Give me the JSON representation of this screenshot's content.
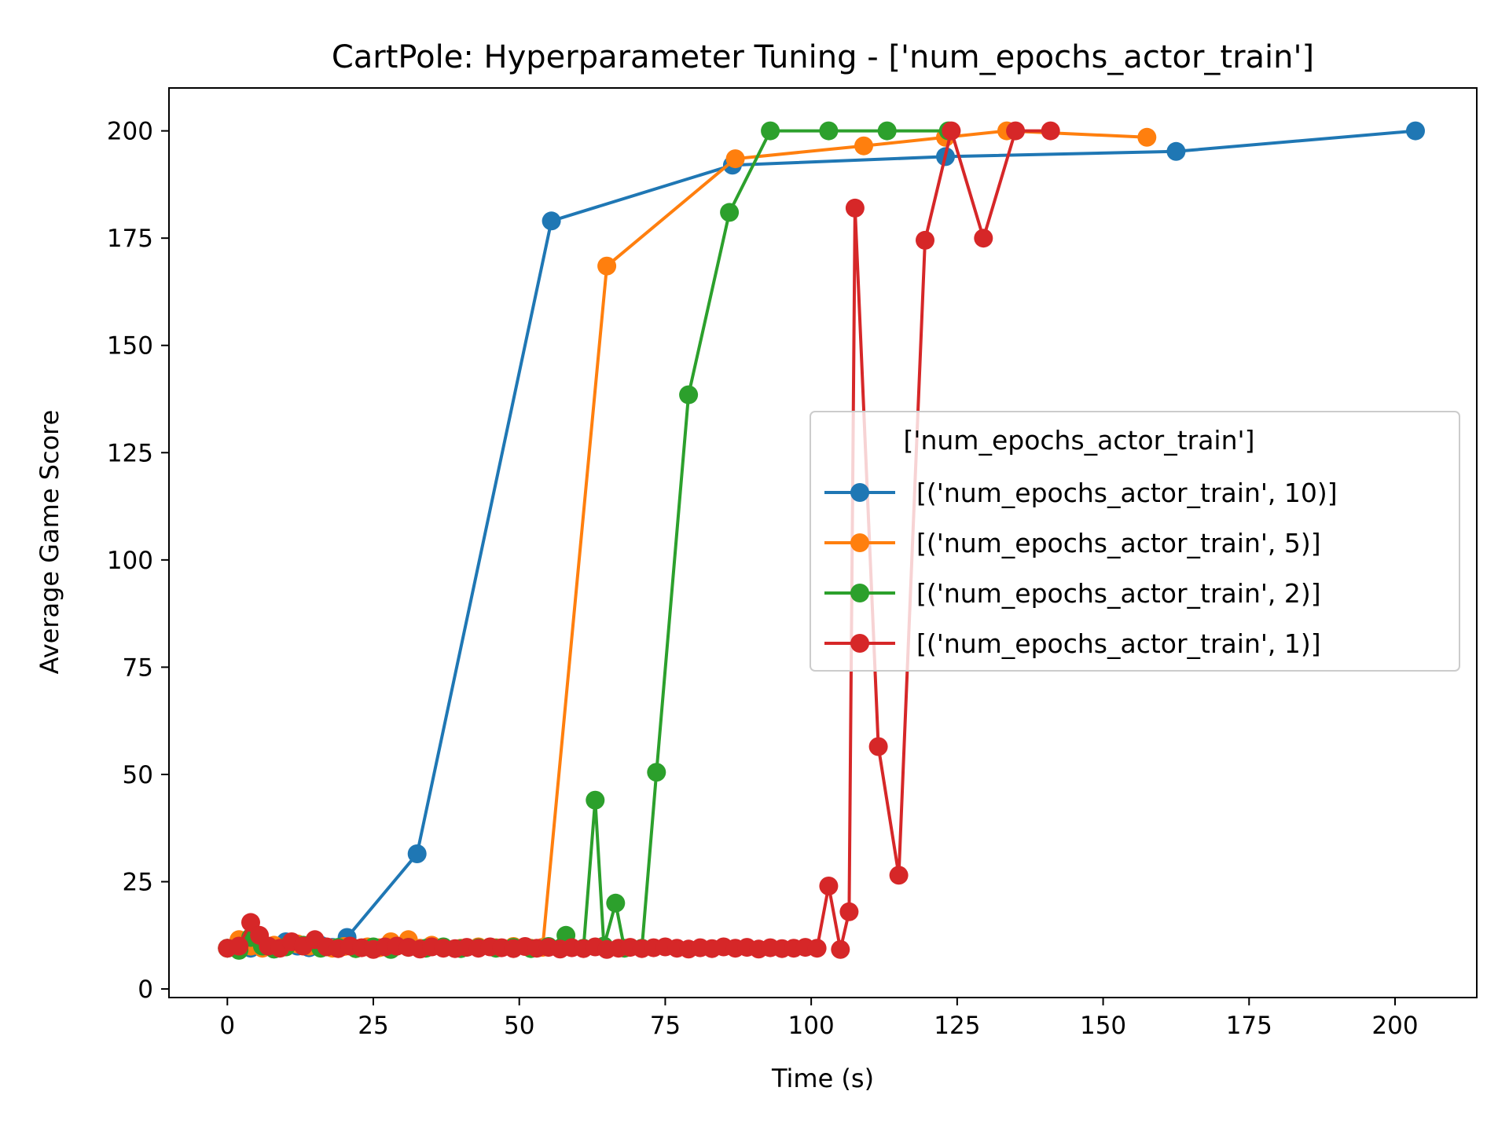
{
  "chart_data": {
    "type": "line",
    "title": "CartPole: Hyperparameter Tuning - ['num_epochs_actor_train']",
    "xlabel": "Time (s)",
    "ylabel": "Average Game Score",
    "xlim": [
      -10,
      214
    ],
    "ylim": [
      -2,
      210
    ],
    "xticks": [
      0,
      25,
      50,
      75,
      100,
      125,
      150,
      175,
      200
    ],
    "yticks": [
      0,
      25,
      50,
      75,
      100,
      125,
      150,
      175,
      200
    ],
    "grid": false,
    "legend": {
      "title": "['num_epochs_actor_train']",
      "placement": "center-right"
    },
    "series": [
      {
        "name": "[('num_epochs_actor_train', 10)]",
        "color": "#1f77b4",
        "x": [
          0,
          2,
          4,
          6,
          8,
          10,
          12,
          14,
          16,
          18,
          20.5,
          32.5,
          55.5,
          86.5,
          123,
          162.5,
          203.5
        ],
        "y": [
          9.5,
          10,
          9.5,
          9.8,
          9.3,
          11,
          10,
          9.6,
          10.2,
          9.7,
          12,
          31.5,
          179,
          192,
          194,
          195.2,
          200
        ]
      },
      {
        "name": "[('num_epochs_actor_train', 5)]",
        "color": "#ff7f0e",
        "x": [
          0,
          2,
          4,
          6,
          8,
          10,
          12,
          14,
          16,
          18,
          20,
          22,
          24,
          26,
          28,
          29,
          31,
          33,
          35,
          37,
          40,
          43,
          46,
          49,
          52,
          54,
          65,
          87,
          109,
          123,
          133.5,
          157.5
        ],
        "y": [
          9.5,
          11.5,
          10,
          9.5,
          10.2,
          9.8,
          10.5,
          10,
          9.7,
          9.5,
          9.9,
          9.4,
          9.8,
          9.6,
          11,
          10,
          11.5,
          9.5,
          10.2,
          9.7,
          9.5,
          9.8,
          9.6,
          9.9,
          9.5,
          9.7,
          168.5,
          193.5,
          196.5,
          198.5,
          200,
          198.5
        ]
      },
      {
        "name": "[('num_epochs_actor_train', 2)]",
        "color": "#2ca02c",
        "x": [
          0,
          2,
          4,
          6,
          8,
          10,
          13,
          16,
          19,
          22,
          25,
          28,
          31,
          34,
          37,
          40,
          43,
          46,
          49,
          52,
          55,
          58,
          61,
          63,
          64.5,
          66.5,
          68,
          71,
          73.5,
          79,
          86,
          93,
          103,
          113,
          123.5
        ],
        "y": [
          9.5,
          9,
          12,
          10,
          9.3,
          9.8,
          10.2,
          9.5,
          9.7,
          9.4,
          9.8,
          9.2,
          9.7,
          9.5,
          9.8,
          9.4,
          9.6,
          9.5,
          9.7,
          9.4,
          9.9,
          12.5,
          9.5,
          44,
          10,
          20,
          9.5,
          9.5,
          50.5,
          138.5,
          181,
          200,
          200,
          200,
          200
        ]
      },
      {
        "name": "[('num_epochs_actor_train', 1)]",
        "color": "#d62728",
        "x": [
          0,
          2,
          4,
          5.5,
          7,
          9,
          11,
          13,
          15,
          17,
          19,
          21,
          23,
          25,
          27,
          29,
          31,
          33,
          35,
          37,
          39,
          41,
          43,
          45,
          47,
          49,
          51,
          53,
          55,
          57,
          59,
          61,
          63,
          65,
          67,
          69,
          71,
          73,
          75,
          77,
          79,
          81,
          83,
          85,
          87,
          89,
          91,
          93,
          95,
          97,
          99,
          101,
          103,
          105,
          106.5,
          107.5,
          111.5,
          115,
          119.5,
          124,
          129.5,
          135,
          141
        ],
        "y": [
          9.5,
          10,
          15.5,
          12.5,
          10,
          9.5,
          11,
          10,
          11.5,
          9.8,
          9.4,
          10,
          9.6,
          9.2,
          9.8,
          10,
          9.7,
          9.3,
          9.8,
          9.5,
          9.4,
          9.7,
          9.5,
          9.8,
          9.6,
          9.4,
          9.9,
          9.5,
          9.7,
          9.3,
          9.6,
          9.4,
          9.8,
          9.2,
          9.5,
          9.7,
          9.4,
          9.6,
          9.8,
          9.5,
          9.3,
          9.6,
          9.4,
          9.8,
          9.5,
          9.7,
          9.3,
          9.6,
          9.4,
          9.5,
          9.7,
          9.5,
          24,
          9.2,
          18,
          182,
          56.5,
          26.5,
          174.5,
          200,
          175,
          200,
          200
        ]
      }
    ]
  }
}
